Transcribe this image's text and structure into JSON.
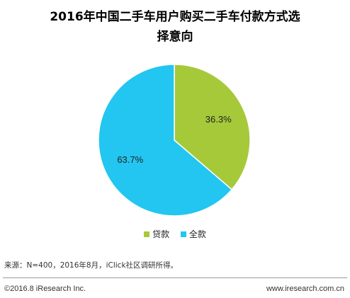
{
  "title_lines": [
    "2016年中国二手车用户购买二手车付款方式选",
    "择意向"
  ],
  "chart_data": {
    "type": "pie",
    "title": "2016年中国二手车用户购买二手车付款方式选择意向",
    "categories": [
      "贷款",
      "全款"
    ],
    "values": [
      36.3,
      63.7
    ],
    "value_labels": [
      "36.3%",
      "63.7%"
    ],
    "unit": "%",
    "colors": [
      "#a6c93a",
      "#22c6f0"
    ],
    "legend_position": "bottom"
  },
  "source": "来源：N=400，2016年8月，iClick社区调研所得。",
  "footer": {
    "copyright": "©2016.8 iResearch Inc.",
    "website": "www.iresearch.com.cn"
  }
}
